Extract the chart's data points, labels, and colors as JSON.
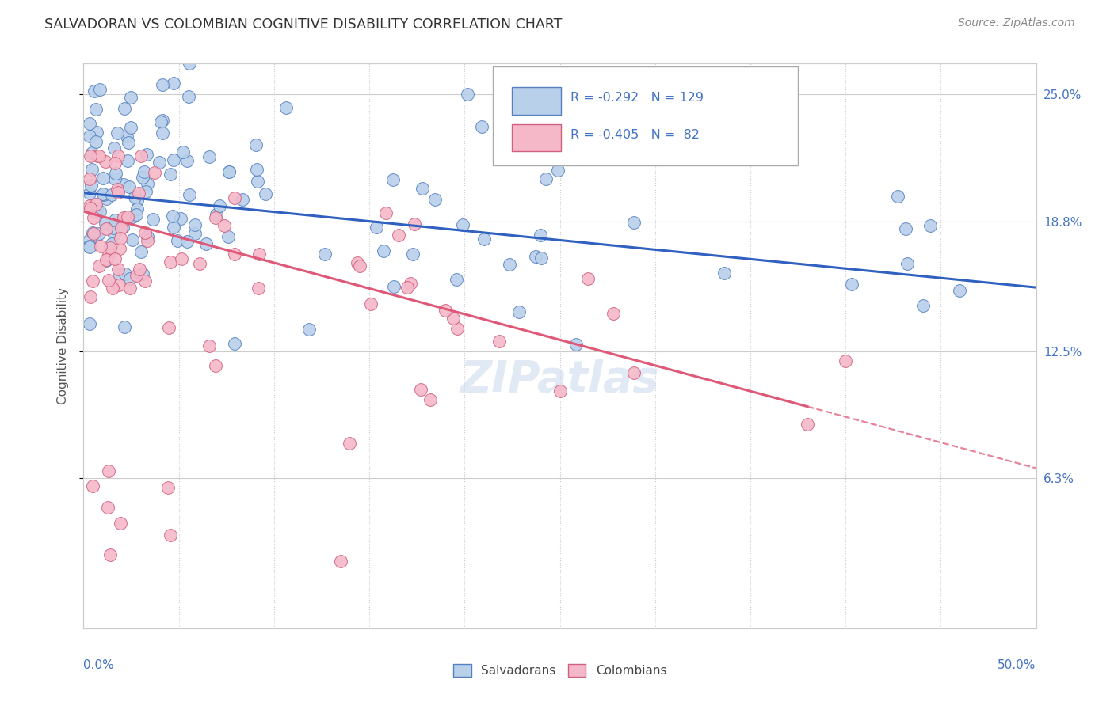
{
  "title": "SALVADORAN VS COLOMBIAN COGNITIVE DISABILITY CORRELATION CHART",
  "source": "Source: ZipAtlas.com",
  "ylabel": "Cognitive Disability",
  "xmin": 0.0,
  "xmax": 0.5,
  "ymin": -0.01,
  "ymax": 0.265,
  "yticks": [
    0.063,
    0.125,
    0.188,
    0.25
  ],
  "ytick_labels": [
    "6.3%",
    "12.5%",
    "18.8%",
    "25.0%"
  ],
  "legend_blue_R": "-0.292",
  "legend_blue_N": "129",
  "legend_pink_R": "-0.405",
  "legend_pink_N": " 82",
  "blue_fill": "#b8d0ea",
  "blue_edge": "#5580c0",
  "pink_fill": "#f5b8c8",
  "pink_edge": "#d06080",
  "blue_line": "#3060c0",
  "pink_line": "#e05878",
  "background": "#ffffff",
  "grid_color": "#cccccc",
  "blue_trend_start_x": 0.0,
  "blue_trend_start_y": 0.202,
  "blue_trend_end_x": 0.5,
  "blue_trend_end_y": 0.156,
  "pink_trend_start_x": 0.0,
  "pink_trend_start_y": 0.193,
  "pink_trend_solid_end_x": 0.38,
  "pink_trend_solid_end_y": 0.098,
  "pink_trend_dash_end_x": 0.5,
  "pink_trend_dash_end_y": 0.068
}
